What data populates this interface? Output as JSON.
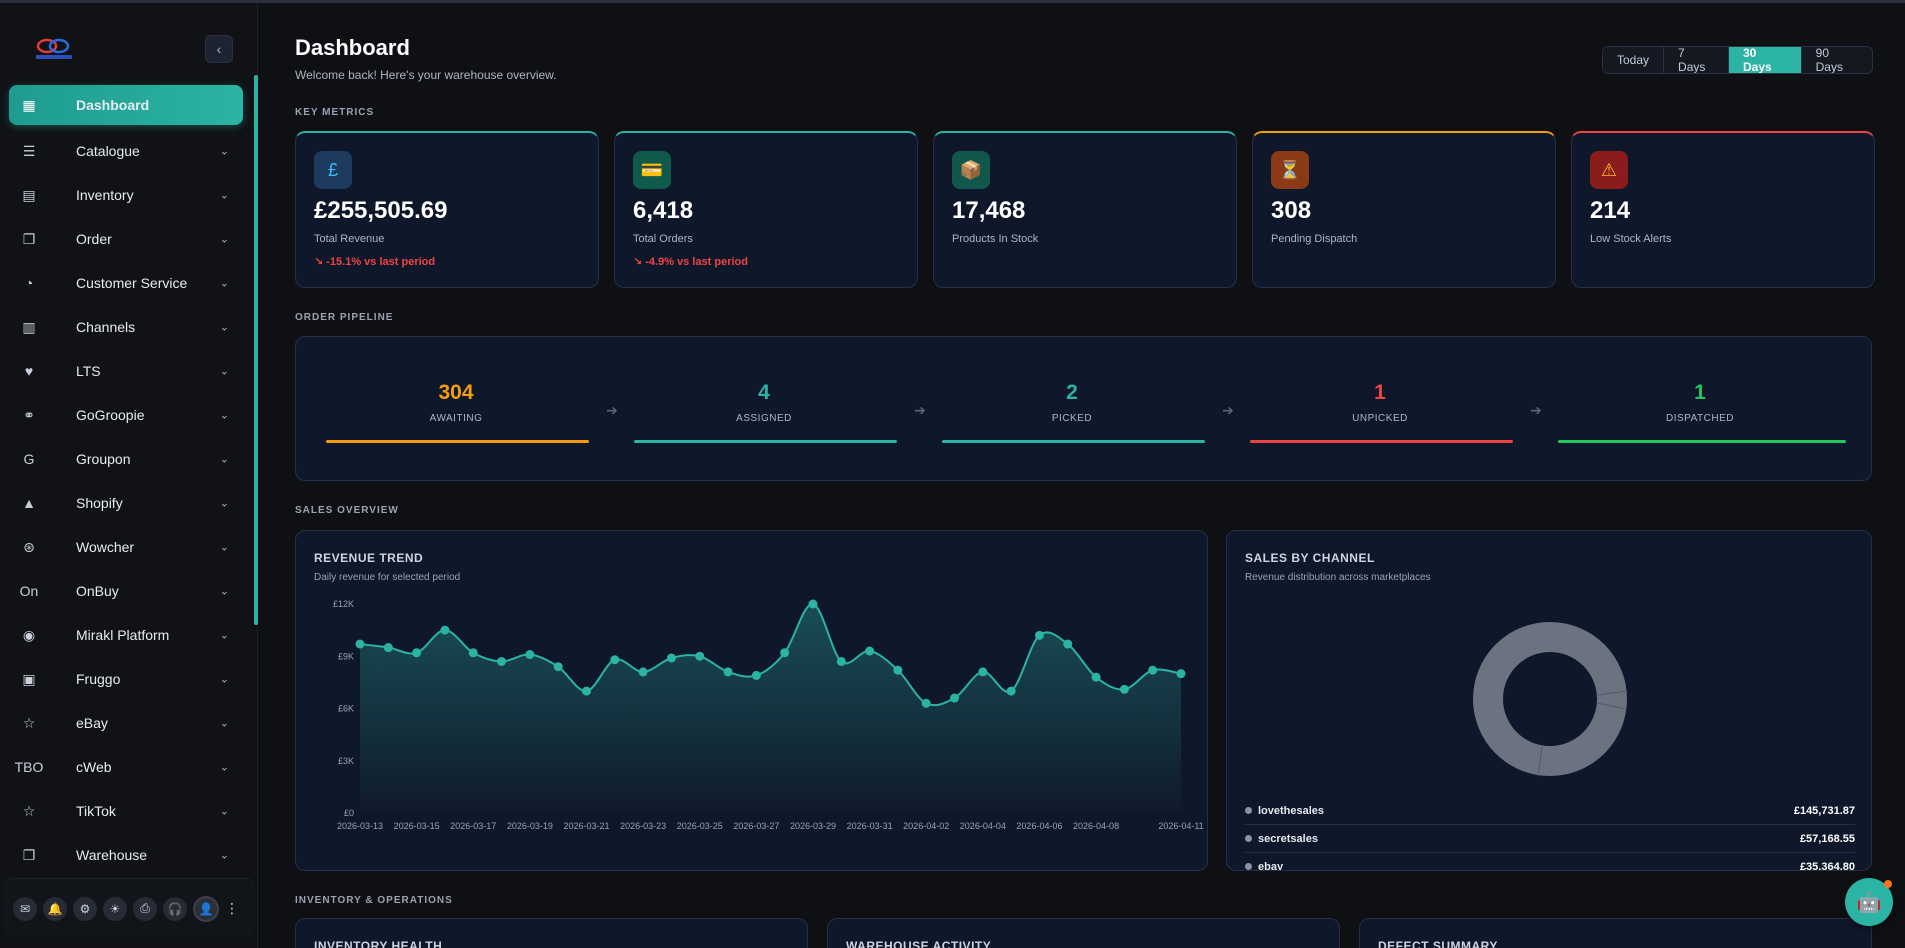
{
  "sidebar": {
    "items": [
      {
        "label": "Dashboard",
        "icon": "grid-icon",
        "glyph": "▦"
      },
      {
        "label": "Catalogue",
        "icon": "list-icon",
        "glyph": "☰"
      },
      {
        "label": "Inventory",
        "icon": "box-icon",
        "glyph": "▤"
      },
      {
        "label": "Order",
        "icon": "copy-icon",
        "glyph": "❐"
      },
      {
        "label": "Customer Service",
        "icon": "headset-icon",
        "glyph": "◔"
      },
      {
        "label": "Channels",
        "icon": "store-icon",
        "glyph": "▥"
      },
      {
        "label": "LTS",
        "icon": "heart-shield-icon",
        "glyph": "♥"
      },
      {
        "label": "GoGroopie",
        "icon": "gogroopie-icon",
        "glyph": "⚭"
      },
      {
        "label": "Groupon",
        "icon": "groupon-icon",
        "glyph": "G"
      },
      {
        "label": "Shopify",
        "icon": "shopify-icon",
        "glyph": "▲"
      },
      {
        "label": "Wowcher",
        "icon": "wowcher-icon",
        "glyph": "⊛"
      },
      {
        "label": "OnBuy",
        "icon": "onbuy-icon",
        "glyph": "On"
      },
      {
        "label": "Mirakl Platform",
        "icon": "mirakl-icon",
        "glyph": "◉"
      },
      {
        "label": "Fruggo",
        "icon": "fruggo-icon",
        "glyph": "▣"
      },
      {
        "label": "eBay",
        "icon": "star-icon",
        "glyph": "☆"
      },
      {
        "label": "cWeb",
        "icon": "cweb-icon",
        "glyph": "TBO"
      },
      {
        "label": "TikTok",
        "icon": "star-icon",
        "glyph": "☆"
      },
      {
        "label": "Warehouse",
        "icon": "copy-icon",
        "glyph": "❐"
      }
    ]
  },
  "header": {
    "title": "Dashboard",
    "subtitle": "Welcome back! Here's your warehouse overview.",
    "ranges": [
      "Today",
      "7 Days",
      "30 Days",
      "90 Days"
    ],
    "selected_range": "30 Days"
  },
  "sections": {
    "key_metrics": "KEY METRICS",
    "order_pipeline": "ORDER PIPELINE",
    "sales_overview": "SALES OVERVIEW",
    "inventory_ops": "INVENTORY & OPERATIONS"
  },
  "metrics": [
    {
      "value": "£255,505.69",
      "label": "Total Revenue",
      "delta": "↘ -15.1% vs last period",
      "glyph": "£",
      "accent": "#2bb3a3",
      "icon_bg": "#1e3a5f",
      "icon_color": "#38bdf8"
    },
    {
      "value": "6,418",
      "label": "Total Orders",
      "delta": "↘ -4.9% vs last period",
      "glyph": "💳",
      "accent": "#2bb3a3",
      "icon_bg": "#0f5a4a",
      "icon_color": "#ffffff"
    },
    {
      "value": "17,468",
      "label": "Products In Stock",
      "delta": "",
      "glyph": "📦",
      "accent": "#2bb3a3",
      "icon_bg": "#11574b",
      "icon_color": "#ffffff"
    },
    {
      "value": "308",
      "label": "Pending Dispatch",
      "delta": "",
      "glyph": "⏳",
      "accent": "#f59e0b",
      "icon_bg": "#8a3a16",
      "icon_color": "#ffffff"
    },
    {
      "value": "214",
      "label": "Low Stock Alerts",
      "delta": "",
      "glyph": "⚠",
      "accent": "#ef4444",
      "icon_bg": "#8b1c1c",
      "icon_color": "#fbbf24"
    }
  ],
  "pipeline": [
    {
      "count": "304",
      "label": "AWAITING",
      "color": "#f59e0b"
    },
    {
      "count": "4",
      "label": "ASSIGNED",
      "color": "#2bb3a3"
    },
    {
      "count": "2",
      "label": "PICKED",
      "color": "#2bb3a3"
    },
    {
      "count": "1",
      "label": "UNPICKED",
      "color": "#ef4444"
    },
    {
      "count": "1",
      "label": "DISPATCHED",
      "color": "#22c55e"
    }
  ],
  "revenue_panel": {
    "title": "REVENUE TREND",
    "subtitle": "Daily revenue for selected period"
  },
  "channel_panel": {
    "title": "SALES BY CHANNEL",
    "subtitle": "Revenue distribution across marketplaces",
    "channels": [
      {
        "name": "lovethesales",
        "value": "£145,731.87"
      },
      {
        "name": "secretsales",
        "value": "£57,168.55"
      },
      {
        "name": "ebay",
        "value": "£35,364.80"
      }
    ]
  },
  "bottom_panels": [
    "INVENTORY HEALTH",
    "WAREHOUSE ACTIVITY",
    "DEFECT SUMMARY"
  ],
  "chart_data": {
    "type": "line",
    "x": [
      "2026-03-13",
      "2026-03-14",
      "2026-03-15",
      "2026-03-16",
      "2026-03-17",
      "2026-03-18",
      "2026-03-19",
      "2026-03-20",
      "2026-03-21",
      "2026-03-22",
      "2026-03-23",
      "2026-03-24",
      "2026-03-25",
      "2026-03-26",
      "2026-03-27",
      "2026-03-28",
      "2026-03-29",
      "2026-03-30",
      "2026-03-31",
      "2026-04-01",
      "2026-04-02",
      "2026-04-03",
      "2026-04-04",
      "2026-04-05",
      "2026-04-06",
      "2026-04-07",
      "2026-04-08",
      "2026-04-09",
      "2026-04-10",
      "2026-04-11"
    ],
    "x_tick_labels": [
      "2026-03-13",
      "2026-03-15",
      "2026-03-17",
      "2026-03-19",
      "2026-03-21",
      "2026-03-23",
      "2026-03-25",
      "2026-03-27",
      "2026-03-29",
      "2026-03-31",
      "2026-04-02",
      "2026-04-04",
      "2026-04-06",
      "2026-04-08",
      "2026-04-11"
    ],
    "series": [
      {
        "values": [
          9700,
          9500,
          9200,
          10500,
          9200,
          8700,
          9100,
          8400,
          7000,
          8800,
          8100,
          8900,
          9000,
          8100,
          7900,
          9200,
          12000,
          8700,
          9300,
          8200,
          6300,
          6600,
          8100,
          7000,
          10200,
          9700,
          7800,
          7100,
          8200,
          8000
        ]
      }
    ],
    "yticks": [
      "£0",
      "£3K",
      "£6K",
      "£9K",
      "£12K"
    ],
    "ylim": [
      0,
      12000
    ],
    "color": "#2bb3a3"
  }
}
